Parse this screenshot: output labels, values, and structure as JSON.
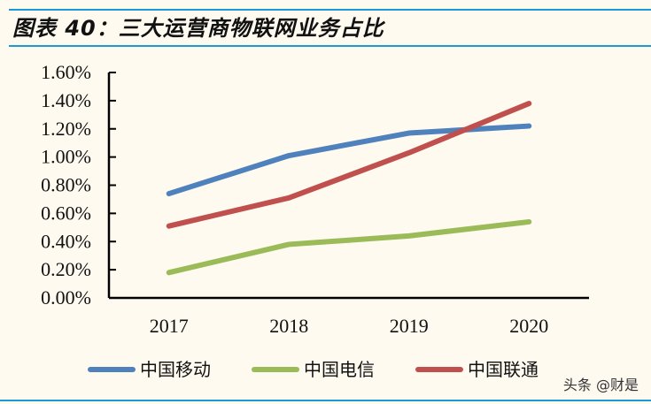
{
  "header": {
    "title": "图表 40：三大运营商物联网业务占比"
  },
  "colors": {
    "rule": "#1a9ad6",
    "background": "#fefaf0",
    "series": [
      "#4f81bd",
      "#9bbb59",
      "#c0504d"
    ]
  },
  "watermark": "头条 @财是",
  "chart_data": {
    "type": "line",
    "title": "三大运营商物联网业务占比",
    "xlabel": "",
    "ylabel": "",
    "categories": [
      "2017",
      "2018",
      "2019",
      "2020"
    ],
    "yticks": [
      "0.00%",
      "0.20%",
      "0.40%",
      "0.60%",
      "0.80%",
      "1.00%",
      "1.20%",
      "1.40%",
      "1.60%"
    ],
    "ylim": [
      0,
      1.6
    ],
    "unit": "%",
    "grid": false,
    "legend_position": "bottom",
    "series": [
      {
        "name": "中国移动",
        "color": "#4f81bd",
        "values": [
          0.74,
          1.01,
          1.17,
          1.22
        ]
      },
      {
        "name": "中国电信",
        "color": "#9bbb59",
        "values": [
          0.18,
          0.38,
          0.44,
          0.54
        ]
      },
      {
        "name": "中国联通",
        "color": "#c0504d",
        "values": [
          0.51,
          0.71,
          1.03,
          1.38
        ]
      }
    ]
  }
}
